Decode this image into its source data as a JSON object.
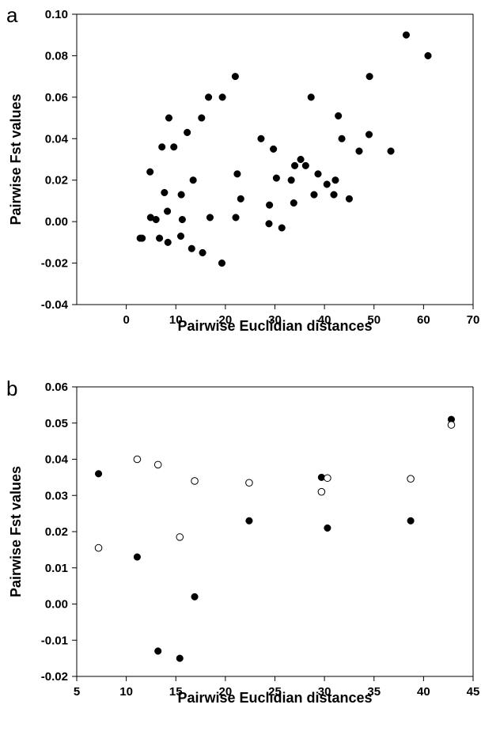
{
  "chart_data": [
    {
      "type": "scatter",
      "panel_label": "a",
      "xlabel": "Pairwise Euclidian distances",
      "ylabel": "Pairwise Fst values",
      "xlim": [
        -10,
        70
      ],
      "ylim": [
        -0.04,
        0.1
      ],
      "xticks": [
        "0",
        "10",
        "20",
        "30",
        "40",
        "50",
        "60",
        "70"
      ],
      "yticks": [
        "-0.04",
        "-0.02",
        "0.00",
        "0.02",
        "0.04",
        "0.06",
        "0.08",
        "0.10"
      ],
      "grid": false,
      "series": [
        {
          "marker": "filled-circle",
          "color": "#000000",
          "points": [
            [
              2.8,
              -0.008
            ],
            [
              3.2,
              -0.008
            ],
            [
              4.8,
              0.024
            ],
            [
              4.9,
              0.002
            ],
            [
              6.0,
              0.001
            ],
            [
              6.7,
              -0.008
            ],
            [
              7.2,
              0.036
            ],
            [
              7.7,
              0.014
            ],
            [
              8.3,
              0.005
            ],
            [
              8.4,
              -0.01
            ],
            [
              8.6,
              0.05
            ],
            [
              9.6,
              0.036
            ],
            [
              11.1,
              0.013
            ],
            [
              11.0,
              -0.007
            ],
            [
              11.3,
              0.001
            ],
            [
              12.3,
              0.043
            ],
            [
              13.2,
              -0.013
            ],
            [
              13.5,
              0.02
            ],
            [
              15.2,
              0.05
            ],
            [
              15.4,
              -0.015
            ],
            [
              16.6,
              0.06
            ],
            [
              16.9,
              0.002
            ],
            [
              19.3,
              -0.02
            ],
            [
              19.4,
              0.06
            ],
            [
              22.0,
              0.07
            ],
            [
              22.1,
              0.002
            ],
            [
              22.4,
              0.023
            ],
            [
              23.1,
              0.011
            ],
            [
              27.2,
              0.04
            ],
            [
              28.8,
              -0.001
            ],
            [
              28.9,
              0.008
            ],
            [
              29.7,
              0.035
            ],
            [
              30.3,
              0.021
            ],
            [
              31.4,
              -0.003
            ],
            [
              33.3,
              0.02
            ],
            [
              33.8,
              0.009
            ],
            [
              34.0,
              0.027
            ],
            [
              35.2,
              0.03
            ],
            [
              36.2,
              0.027
            ],
            [
              37.3,
              0.06
            ],
            [
              37.9,
              0.013
            ],
            [
              38.7,
              0.023
            ],
            [
              40.5,
              0.018
            ],
            [
              41.9,
              0.013
            ],
            [
              42.2,
              0.02
            ],
            [
              42.8,
              0.051
            ],
            [
              43.5,
              0.04
            ],
            [
              45.0,
              0.011
            ],
            [
              47.0,
              0.034
            ],
            [
              49.0,
              0.042
            ],
            [
              49.1,
              0.07
            ],
            [
              53.4,
              0.034
            ],
            [
              56.5,
              0.09
            ],
            [
              60.9,
              0.08
            ]
          ]
        }
      ]
    },
    {
      "type": "scatter",
      "panel_label": "b",
      "xlabel": "Pairwise Euclidian distances",
      "ylabel": "Pairwise Fst values",
      "xlim": [
        5,
        45
      ],
      "ylim": [
        -0.02,
        0.06
      ],
      "xticks": [
        "5",
        "10",
        "15",
        "20",
        "25",
        "30",
        "35",
        "40",
        "45"
      ],
      "yticks": [
        "-0.02",
        "-0.01",
        "0.00",
        "0.01",
        "0.02",
        "0.03",
        "0.04",
        "0.05",
        "0.06"
      ],
      "grid": false,
      "series": [
        {
          "marker": "filled-circle",
          "color": "#000000",
          "points": [
            [
              7.2,
              0.036
            ],
            [
              11.1,
              0.013
            ],
            [
              13.2,
              -0.013
            ],
            [
              15.4,
              -0.015
            ],
            [
              16.9,
              0.002
            ],
            [
              22.4,
              0.023
            ],
            [
              29.7,
              0.035
            ],
            [
              30.3,
              0.021
            ],
            [
              38.7,
              0.023
            ],
            [
              42.8,
              0.051
            ]
          ]
        },
        {
          "marker": "open-circle",
          "color": "#000000",
          "points": [
            [
              7.2,
              0.0155
            ],
            [
              11.1,
              0.04
            ],
            [
              13.2,
              0.0385
            ],
            [
              15.4,
              0.0185
            ],
            [
              16.9,
              0.034
            ],
            [
              22.4,
              0.0335
            ],
            [
              29.7,
              0.031
            ],
            [
              30.3,
              0.0348
            ],
            [
              38.7,
              0.0346
            ],
            [
              42.8,
              0.0495
            ]
          ]
        }
      ]
    }
  ]
}
